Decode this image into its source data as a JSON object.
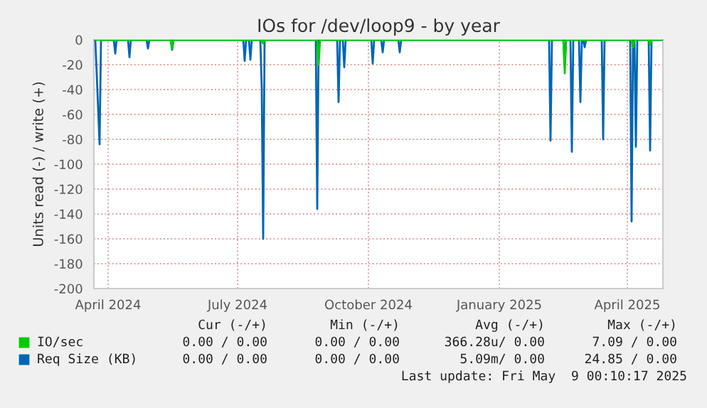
{
  "chart_data": {
    "type": "line",
    "title": "IOs for /dev/loop9 - by year",
    "ylabel": "Units read (-) / write (+)",
    "xlim": [
      "2024-04-05",
      "2025-05-10"
    ],
    "xticks": [
      {
        "value": "2024-04-15",
        "label": "April 2024"
      },
      {
        "value": "2024-07-15",
        "label": "July 2024"
      },
      {
        "value": "2024-10-15",
        "label": "October 2024"
      },
      {
        "value": "2025-01-15",
        "label": "January 2025"
      },
      {
        "value": "2025-04-15",
        "label": "April 2025"
      }
    ],
    "ylim": [
      -200,
      0
    ],
    "yticks": [
      -200,
      -180,
      -160,
      -140,
      -120,
      -100,
      -80,
      -60,
      -40,
      -20,
      0
    ],
    "grid": true,
    "legend": "bottom",
    "series": [
      {
        "name": "IO/sec",
        "color": "#00cc00",
        "x": [
          "2024-04-06",
          "2024-05-29",
          "2024-05-30",
          "2024-05-31",
          "2024-08-01",
          "2024-08-02",
          "2024-08-03",
          "2024-09-09",
          "2024-09-10",
          "2024-09-11",
          "2025-03-01",
          "2025-03-02",
          "2025-03-03",
          "2025-04-18",
          "2025-04-19",
          "2025-04-20",
          "2025-04-30",
          "2025-05-01",
          "2025-05-02",
          "2025-05-09"
        ],
        "values": [
          0,
          0,
          -7,
          0,
          0,
          -3,
          0,
          0,
          -20,
          0,
          0,
          -27,
          0,
          0,
          -6,
          0,
          0,
          -4,
          0,
          0
        ]
      },
      {
        "name": "Req Size (KB)",
        "color": "#0066b3",
        "x": [
          "2024-04-06",
          "2024-04-09",
          "2024-04-10",
          "2024-04-19",
          "2024-04-20",
          "2024-04-21",
          "2024-04-29",
          "2024-04-30",
          "2024-05-01",
          "2024-05-12",
          "2024-05-13",
          "2024-05-14",
          "2024-05-29",
          "2024-05-30",
          "2024-05-31",
          "2024-07-19",
          "2024-07-20",
          "2024-07-21",
          "2024-07-23",
          "2024-07-24",
          "2024-07-25",
          "2024-07-31",
          "2024-08-01",
          "2024-08-02",
          "2024-08-03",
          "2024-09-08",
          "2024-09-09",
          "2024-09-10",
          "2024-09-23",
          "2024-09-24",
          "2024-09-25",
          "2024-09-27",
          "2024-09-28",
          "2024-09-29",
          "2024-10-17",
          "2024-10-18",
          "2024-10-19",
          "2024-10-24",
          "2024-10-25",
          "2024-10-26",
          "2024-11-05",
          "2024-11-06",
          "2024-11-07",
          "2025-02-19",
          "2025-02-20",
          "2025-02-21",
          "2025-03-01",
          "2025-03-02",
          "2025-03-03",
          "2025-03-06",
          "2025-03-07",
          "2025-03-08",
          "2025-03-12",
          "2025-03-13",
          "2025-03-14",
          "2025-03-15",
          "2025-03-16",
          "2025-03-17",
          "2025-03-28",
          "2025-03-29",
          "2025-03-30",
          "2025-04-17",
          "2025-04-18",
          "2025-04-19",
          "2025-04-20",
          "2025-04-21",
          "2025-04-22",
          "2025-04-30",
          "2025-05-01",
          "2025-05-02",
          "2025-05-09"
        ],
        "values": [
          0,
          -84,
          0,
          0,
          -11,
          0,
          0,
          -14,
          0,
          0,
          -7,
          0,
          0,
          -8,
          0,
          0,
          -17,
          0,
          0,
          -16,
          0,
          0,
          -39,
          -160,
          0,
          0,
          -136,
          0,
          0,
          -50,
          0,
          0,
          -22,
          0,
          0,
          -19,
          0,
          0,
          -10,
          0,
          0,
          -10,
          0,
          0,
          -81,
          0,
          0,
          -18,
          0,
          0,
          -90,
          0,
          0,
          -50,
          0,
          0,
          -6,
          0,
          0,
          -80,
          0,
          0,
          -146,
          0,
          0,
          -86,
          0,
          0,
          -89,
          0,
          0
        ]
      }
    ],
    "annotations": [
      "Cur (-/+)",
      "Min (-/+)",
      "Avg (-/+)",
      "Max (-/+)",
      "0.00 / 0.00",
      "0.00 / 0.00",
      "366.28u/ 0.00",
      "7.09 / 0.00",
      "0.00 / 0.00",
      "0.00 / 0.00",
      "5.09m/ 0.00",
      "24.85 / 0.00",
      "Last update: Fri May  9 00:10:17 2025"
    ]
  }
}
